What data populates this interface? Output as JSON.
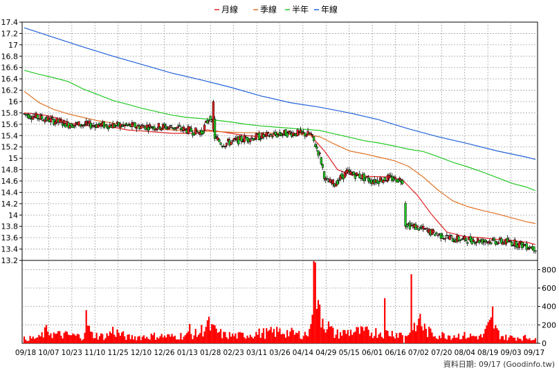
{
  "chart_data": [
    {
      "type": "candlestick",
      "legend": [
        {
          "label": "月線",
          "color": "#e02020"
        },
        {
          "label": "季線",
          "color": "#e07020"
        },
        {
          "label": "半年",
          "color": "#22c822"
        },
        {
          "label": "年線",
          "color": "#2060d8"
        }
      ],
      "legend_position": "top-center",
      "y_ticks": [
        "17.4",
        "17.2",
        "17",
        "16.8",
        "16.6",
        "16.4",
        "16.2",
        "16",
        "15.8",
        "15.6",
        "15.4",
        "15.2",
        "15",
        "14.8",
        "14.6",
        "14.4",
        "14.2",
        "14",
        "13.8",
        "13.6",
        "13.4",
        "13.2"
      ],
      "ylim": [
        13.2,
        17.4
      ],
      "grid": true,
      "candle_up_color": "#e02020",
      "candle_down_color": "#22c822",
      "moving_averages": [
        {
          "name": "月線",
          "color": "#e02020",
          "points": [
            [
              0,
              15.8
            ],
            [
              8,
              15.78
            ],
            [
              16,
              15.75
            ],
            [
              24,
              15.7
            ],
            [
              30,
              15.62
            ],
            [
              40,
              15.58
            ],
            [
              50,
              15.57
            ],
            [
              60,
              15.55
            ],
            [
              70,
              15.5
            ],
            [
              80,
              15.48
            ],
            [
              90,
              15.46
            ],
            [
              100,
              15.44
            ],
            [
              110,
              15.44
            ],
            [
              118,
              15.45
            ],
            [
              124,
              15.5
            ],
            [
              130,
              15.48
            ],
            [
              140,
              15.44
            ],
            [
              150,
              15.4
            ],
            [
              160,
              15.38
            ],
            [
              170,
              15.4
            ],
            [
              180,
              15.42
            ],
            [
              186,
              15.45
            ],
            [
              194,
              15.4
            ],
            [
              204,
              15.1
            ],
            [
              212,
              14.8
            ],
            [
              222,
              14.7
            ],
            [
              234,
              14.68
            ],
            [
              246,
              14.67
            ],
            [
              256,
              14.62
            ],
            [
              266,
              14.35
            ],
            [
              276,
              14.0
            ],
            [
              286,
              13.7
            ],
            [
              298,
              13.62
            ],
            [
              310,
              13.6
            ],
            [
              320,
              13.57
            ],
            [
              330,
              13.55
            ],
            [
              340,
              13.52
            ],
            [
              346,
              13.48
            ]
          ]
        },
        {
          "name": "季線",
          "color": "#e07020",
          "points": [
            [
              0,
              16.18
            ],
            [
              10,
              15.98
            ],
            [
              20,
              15.86
            ],
            [
              30,
              15.78
            ],
            [
              40,
              15.72
            ],
            [
              50,
              15.66
            ],
            [
              60,
              15.62
            ],
            [
              70,
              15.58
            ],
            [
              80,
              15.55
            ],
            [
              90,
              15.52
            ],
            [
              100,
              15.5
            ],
            [
              110,
              15.49
            ],
            [
              120,
              15.48
            ],
            [
              130,
              15.47
            ],
            [
              140,
              15.46
            ],
            [
              150,
              15.45
            ],
            [
              160,
              15.45
            ],
            [
              170,
              15.44
            ],
            [
              180,
              15.43
            ],
            [
              190,
              15.42
            ],
            [
              200,
              15.38
            ],
            [
              210,
              15.25
            ],
            [
              220,
              15.13
            ],
            [
              230,
              15.08
            ],
            [
              240,
              15.02
            ],
            [
              250,
              14.96
            ],
            [
              260,
              14.86
            ],
            [
              270,
              14.67
            ],
            [
              280,
              14.44
            ],
            [
              290,
              14.25
            ],
            [
              300,
              14.15
            ],
            [
              310,
              14.08
            ],
            [
              320,
              14.02
            ],
            [
              330,
              13.95
            ],
            [
              340,
              13.88
            ],
            [
              346,
              13.85
            ]
          ]
        },
        {
          "name": "半年",
          "color": "#22c822",
          "points": [
            [
              0,
              16.55
            ],
            [
              10,
              16.48
            ],
            [
              20,
              16.42
            ],
            [
              30,
              16.35
            ],
            [
              40,
              16.22
            ],
            [
              50,
              16.12
            ],
            [
              60,
              16.02
            ],
            [
              70,
              15.95
            ],
            [
              80,
              15.88
            ],
            [
              90,
              15.82
            ],
            [
              100,
              15.76
            ],
            [
              110,
              15.72
            ],
            [
              120,
              15.7
            ],
            [
              130,
              15.67
            ],
            [
              140,
              15.64
            ],
            [
              150,
              15.6
            ],
            [
              160,
              15.57
            ],
            [
              170,
              15.55
            ],
            [
              180,
              15.53
            ],
            [
              190,
              15.51
            ],
            [
              200,
              15.49
            ],
            [
              210,
              15.43
            ],
            [
              220,
              15.37
            ],
            [
              230,
              15.31
            ],
            [
              240,
              15.27
            ],
            [
              250,
              15.22
            ],
            [
              260,
              15.16
            ],
            [
              270,
              15.12
            ],
            [
              280,
              15.03
            ],
            [
              290,
              14.93
            ],
            [
              300,
              14.85
            ],
            [
              310,
              14.76
            ],
            [
              320,
              14.66
            ],
            [
              330,
              14.56
            ],
            [
              340,
              14.49
            ],
            [
              346,
              14.43
            ]
          ]
        },
        {
          "name": "年線",
          "color": "#2060d8",
          "points": [
            [
              0,
              17.3
            ],
            [
              20,
              17.13
            ],
            [
              40,
              16.96
            ],
            [
              60,
              16.8
            ],
            [
              80,
              16.65
            ],
            [
              100,
              16.5
            ],
            [
              120,
              16.38
            ],
            [
              140,
              16.25
            ],
            [
              160,
              16.1
            ],
            [
              180,
              15.98
            ],
            [
              200,
              15.9
            ],
            [
              220,
              15.8
            ],
            [
              240,
              15.68
            ],
            [
              260,
              15.52
            ],
            [
              280,
              15.38
            ],
            [
              300,
              15.26
            ],
            [
              320,
              15.13
            ],
            [
              340,
              15.02
            ],
            [
              346,
              14.98
            ]
          ]
        }
      ]
    },
    {
      "type": "bar",
      "title": "",
      "y_ticks": [
        "800",
        "600",
        "400",
        "200",
        "0"
      ],
      "ylim": [
        0,
        900
      ],
      "color": "#ff0000",
      "volume_profile": [
        [
          0,
          60
        ],
        [
          10,
          75
        ],
        [
          16,
          180
        ],
        [
          20,
          120
        ],
        [
          30,
          110
        ],
        [
          40,
          90
        ],
        [
          42,
          360
        ],
        [
          45,
          120
        ],
        [
          55,
          90
        ],
        [
          60,
          170
        ],
        [
          70,
          80
        ],
        [
          80,
          90
        ],
        [
          90,
          100
        ],
        [
          100,
          90
        ],
        [
          110,
          110
        ],
        [
          118,
          130
        ],
        [
          124,
          260
        ],
        [
          128,
          180
        ],
        [
          135,
          110
        ],
        [
          145,
          100
        ],
        [
          155,
          130
        ],
        [
          165,
          140
        ],
        [
          175,
          160
        ],
        [
          185,
          120
        ],
        [
          193,
          130
        ],
        [
          196,
          1000
        ],
        [
          199,
          500
        ],
        [
          203,
          300
        ],
        [
          210,
          120
        ],
        [
          222,
          160
        ],
        [
          232,
          150
        ],
        [
          242,
          150
        ],
        [
          252,
          130
        ],
        [
          262,
          120
        ],
        [
          268,
          300
        ],
        [
          272,
          160
        ],
        [
          280,
          110
        ],
        [
          290,
          110
        ],
        [
          300,
          100
        ],
        [
          310,
          90
        ],
        [
          317,
          300
        ],
        [
          320,
          150
        ],
        [
          325,
          80
        ],
        [
          335,
          80
        ],
        [
          346,
          70
        ]
      ],
      "volume_spikes": [
        [
          42,
          360
        ],
        [
          112,
          210
        ],
        [
          196,
          1010
        ],
        [
          199,
          470
        ],
        [
          244,
          490
        ],
        [
          262,
          750
        ],
        [
          268,
          320
        ],
        [
          317,
          400
        ]
      ]
    }
  ],
  "x_ticks": [
    "09/18",
    "10/07",
    "10/23",
    "11/10",
    "11/25",
    "12/10",
    "12/26",
    "01/13",
    "01/28",
    "02/23",
    "03/11",
    "03/26",
    "04/14",
    "04/29",
    "05/15",
    "06/01",
    "06/16",
    "07/02",
    "07/20",
    "08/04",
    "08/19",
    "09/03",
    "09/17"
  ],
  "footer": "資料日期: 09/17 (Goodinfo.tw)"
}
